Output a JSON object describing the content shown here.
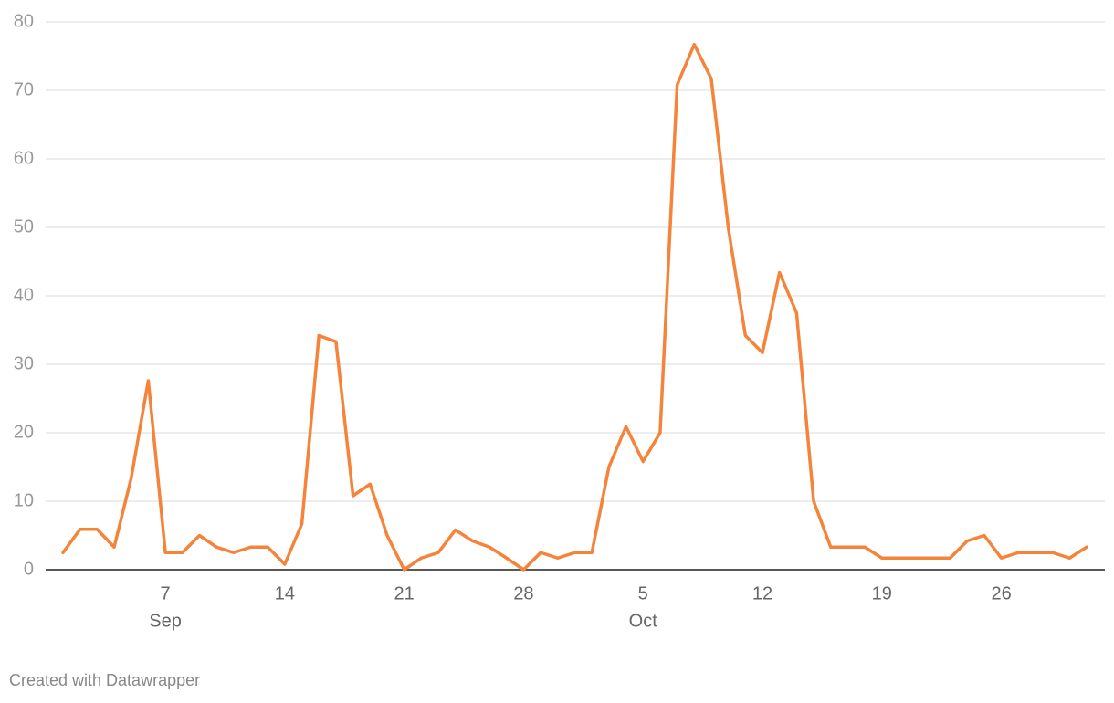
{
  "chart_data": {
    "type": "line",
    "x": [
      "Sep 1",
      "Sep 2",
      "Sep 3",
      "Sep 4",
      "Sep 5",
      "Sep 6",
      "Sep 7",
      "Sep 8",
      "Sep 9",
      "Sep 10",
      "Sep 11",
      "Sep 12",
      "Sep 13",
      "Sep 14",
      "Sep 15",
      "Sep 16",
      "Sep 17",
      "Sep 18",
      "Sep 19",
      "Sep 20",
      "Sep 21",
      "Sep 22",
      "Sep 23",
      "Sep 24",
      "Sep 25",
      "Sep 26",
      "Sep 27",
      "Sep 28",
      "Sep 29",
      "Sep 30",
      "Oct 1",
      "Oct 2",
      "Oct 3",
      "Oct 4",
      "Oct 5",
      "Oct 6",
      "Oct 7",
      "Oct 8",
      "Oct 9",
      "Oct 10",
      "Oct 11",
      "Oct 12",
      "Oct 13",
      "Oct 14",
      "Oct 15",
      "Oct 16",
      "Oct 17",
      "Oct 18",
      "Oct 19",
      "Oct 20",
      "Oct 21",
      "Oct 22",
      "Oct 23",
      "Oct 24",
      "Oct 25",
      "Oct 26",
      "Oct 27",
      "Oct 28",
      "Oct 29",
      "Oct 30",
      "Oct 31"
    ],
    "values": [
      2.5,
      5.9,
      5.9,
      3.3,
      13.4,
      27.6,
      2.5,
      2.5,
      5,
      3.3,
      2.5,
      3.3,
      3.3,
      0.8,
      6.7,
      34.2,
      33.3,
      10.8,
      12.5,
      5,
      0,
      1.7,
      2.5,
      5.8,
      4.2,
      3.3,
      1.7,
      0,
      2.5,
      1.7,
      2.5,
      2.5,
      15,
      20.9,
      15.8,
      20,
      70.8,
      76.7,
      71.7,
      49.9,
      34.2,
      31.7,
      43.4,
      37.5,
      10,
      3.3,
      3.3,
      3.3,
      1.7,
      1.7,
      1.7,
      1.7,
      1.7,
      4.2,
      5,
      1.7,
      2.5,
      2.5,
      2.5,
      1.7,
      3.3
    ],
    "color": "#f5843a",
    "ylim": [
      0,
      80
    ],
    "yticks": [
      0,
      10,
      20,
      30,
      40,
      50,
      60,
      70,
      80
    ],
    "grid": true,
    "xticks": [
      {
        "value": "Sep 7",
        "label": "7"
      },
      {
        "value": "Sep 14",
        "label": "14"
      },
      {
        "value": "Sep 21",
        "label": "21"
      },
      {
        "value": "Sep 28",
        "label": "28"
      },
      {
        "value": "Oct 5",
        "label": "5"
      },
      {
        "value": "Oct 12",
        "label": "12"
      },
      {
        "value": "Oct 19",
        "label": "19"
      },
      {
        "value": "Oct 26",
        "label": "26"
      }
    ],
    "month_labels": [
      {
        "value": "Sep 7",
        "label": "Sep"
      },
      {
        "value": "Oct 5",
        "label": "Oct"
      }
    ],
    "credit": "Created with Datawrapper"
  }
}
